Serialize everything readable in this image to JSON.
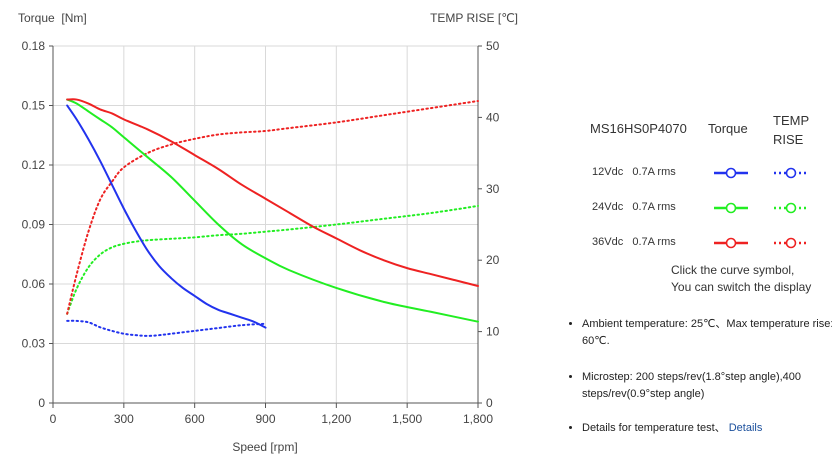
{
  "chart_data": {
    "type": "line",
    "xlabel": "Speed [rpm]",
    "ylabel_left": "Torque  [Nm]",
    "ylabel_right": "TEMP RISE [℃]",
    "xlim": [
      0,
      1800
    ],
    "ylim_left": [
      0,
      0.18
    ],
    "ylim_right": [
      0,
      50
    ],
    "x_ticks": [
      0,
      300,
      600,
      900,
      1200,
      1500,
      1800
    ],
    "x_tick_labels": [
      "0",
      "300",
      "600",
      "900",
      "1,200",
      "1,500",
      "1,800"
    ],
    "y_left_ticks": [
      0,
      0.03,
      0.06,
      0.09,
      0.12,
      0.15,
      0.18
    ],
    "y_left_tick_labels": [
      "0",
      "0.03",
      "0.06",
      "0.09",
      "0.12",
      "0.15",
      "0.18"
    ],
    "y_right_ticks": [
      0,
      10,
      20,
      30,
      40,
      50
    ],
    "y_right_tick_labels": [
      "0",
      "10",
      "20",
      "30",
      "40",
      "50"
    ],
    "grid": true,
    "series": [
      {
        "name": "12Vdc  0.7A rms",
        "kind": "torque",
        "axis": "left",
        "color": "#2233ee",
        "x": [
          60,
          100,
          150,
          200,
          250,
          300,
          350,
          400,
          450,
          500,
          550,
          600,
          650,
          700,
          750,
          800,
          850,
          900
        ],
        "y": [
          0.15,
          0.143,
          0.133,
          0.122,
          0.11,
          0.098,
          0.087,
          0.077,
          0.069,
          0.063,
          0.058,
          0.054,
          0.05,
          0.047,
          0.045,
          0.043,
          0.041,
          0.038
        ]
      },
      {
        "name": "24Vdc  0.7A rms",
        "kind": "torque",
        "axis": "left",
        "color": "#22ee22",
        "x": [
          60,
          100,
          150,
          200,
          250,
          300,
          400,
          500,
          600,
          700,
          800,
          900,
          1000,
          1200,
          1400,
          1600,
          1800
        ],
        "y": [
          0.153,
          0.151,
          0.147,
          0.143,
          0.139,
          0.134,
          0.124,
          0.114,
          0.102,
          0.09,
          0.08,
          0.073,
          0.067,
          0.058,
          0.051,
          0.046,
          0.041
        ]
      },
      {
        "name": "36Vdc  0.7A rms",
        "kind": "torque",
        "axis": "left",
        "color": "#ee2222",
        "x": [
          60,
          100,
          150,
          200,
          250,
          300,
          400,
          500,
          600,
          700,
          800,
          900,
          1000,
          1100,
          1200,
          1300,
          1400,
          1500,
          1600,
          1700,
          1800
        ],
        "y": [
          0.153,
          0.153,
          0.151,
          0.148,
          0.146,
          0.143,
          0.138,
          0.132,
          0.125,
          0.118,
          0.11,
          0.103,
          0.096,
          0.089,
          0.083,
          0.077,
          0.072,
          0.068,
          0.065,
          0.062,
          0.059
        ]
      },
      {
        "name": "12Vdc  0.7A rms",
        "kind": "temp",
        "axis": "right",
        "color": "#2233ee",
        "x": [
          60,
          100,
          150,
          200,
          250,
          300,
          350,
          400,
          450,
          500,
          600,
          700,
          800,
          900
        ],
        "y": [
          11.5,
          11.5,
          11.3,
          10.6,
          10.1,
          9.7,
          9.5,
          9.4,
          9.5,
          9.7,
          10.1,
          10.5,
          10.9,
          11.1
        ]
      },
      {
        "name": "24Vdc  0.7A rms",
        "kind": "temp",
        "axis": "right",
        "color": "#22ee22",
        "x": [
          60,
          100,
          150,
          200,
          250,
          300,
          350,
          400,
          500,
          600,
          700,
          800,
          900,
          1000,
          1200,
          1400,
          1600,
          1800
        ],
        "y": [
          12.5,
          16.0,
          19.0,
          20.8,
          21.8,
          22.3,
          22.6,
          22.8,
          23.0,
          23.2,
          23.5,
          23.7,
          24.0,
          24.3,
          25.0,
          25.8,
          26.6,
          27.6
        ]
      },
      {
        "name": "36Vdc  0.7A rms",
        "kind": "temp",
        "axis": "right",
        "color": "#ee2222",
        "x": [
          60,
          100,
          150,
          200,
          250,
          300,
          400,
          500,
          600,
          700,
          800,
          900,
          1000,
          1200,
          1400,
          1600,
          1800
        ],
        "y": [
          12.5,
          18.0,
          24.0,
          28.5,
          31.0,
          33.0,
          35.0,
          36.2,
          37.0,
          37.6,
          37.9,
          38.1,
          38.5,
          39.3,
          40.3,
          41.3,
          42.3
        ]
      }
    ]
  },
  "legend": {
    "model": "MS16HS0P4070",
    "torque_header": "Torque",
    "temp_header_line1": "TEMP",
    "temp_header_line2": "RISE",
    "rows": [
      {
        "label": "12Vdc   0.7A rms",
        "color": "#2233ee"
      },
      {
        "label": "24Vdc   0.7A rms",
        "color": "#22ee22"
      },
      {
        "label": "36Vdc   0.7A rms",
        "color": "#ee2222"
      }
    ],
    "hint_line1": "Click the curve symbol,",
    "hint_line2": "You can switch the display"
  },
  "notes": {
    "ambient": "Ambient temperature: 25℃、Max temperature rise: 60℃.",
    "microstep": "Microstep: 200 steps/rev(1.8°step angle),400 steps/rev(0.9°step angle)",
    "details_text": "Details for temperature test、",
    "details_link": "Details"
  }
}
